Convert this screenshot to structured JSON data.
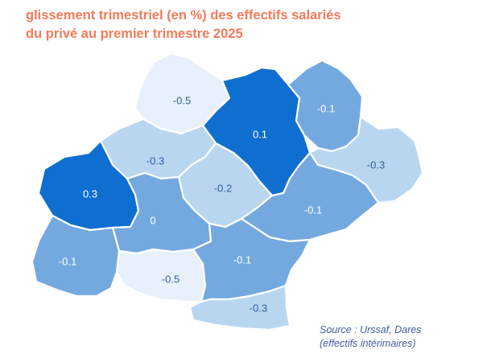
{
  "title": {
    "line1": "glissement trimestriel (en %) des effectifs salariés",
    "line2": "du privé au premier trimestre 2025"
  },
  "colors": {
    "title": "#f47a5a",
    "strong_positive": "#0f6fd0",
    "medium": "#74a9df",
    "light": "#b9d6f1",
    "very_light": "#e8f1fb",
    "label_dark": "#2d5f9e",
    "label_light": "#ffffff"
  },
  "regions": [
    {
      "id": "top-north",
      "value": "-0.5"
    },
    {
      "id": "center-north",
      "value": "0.1"
    },
    {
      "id": "north-east",
      "value": "-0.1"
    },
    {
      "id": "north-west",
      "value": "-0.3"
    },
    {
      "id": "east",
      "value": "-0.3"
    },
    {
      "id": "west",
      "value": "0.3"
    },
    {
      "id": "center",
      "value": "-0.2"
    },
    {
      "id": "center-west",
      "value": "0"
    },
    {
      "id": "center-east",
      "value": "-0.1"
    },
    {
      "id": "south-west",
      "value": "-0.1"
    },
    {
      "id": "south-center",
      "value": "-0.5"
    },
    {
      "id": "south",
      "value": "-0.1"
    },
    {
      "id": "south-east",
      "value": "-0.3"
    }
  ],
  "source": {
    "line1": "Source : Urssaf, Dares",
    "line2": "(effectifs intérimaires)"
  }
}
